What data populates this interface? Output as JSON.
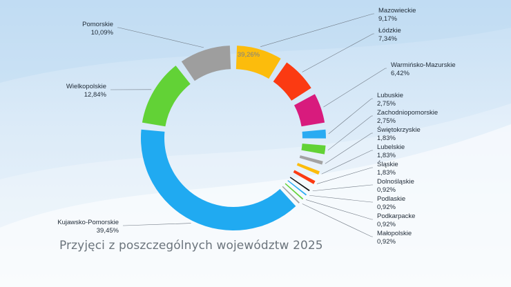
{
  "title": "Przyjęci z poszczególnych województw 2025",
  "chart_data": {
    "type": "pie",
    "title": "Przyjęci z poszczególnych województw 2025",
    "annotation": "39,26%",
    "slices": [
      {
        "name": "Mazowieckie",
        "value_label": "9,17%",
        "value": 9.17,
        "color": "#fcbc0c"
      },
      {
        "name": "Łódzkie",
        "value_label": "7,34%",
        "value": 7.34,
        "color": "#fb3a12"
      },
      {
        "name": "Warmińsko-Mazurskie",
        "value_label": "6,42%",
        "value": 6.42,
        "color": "#d81b7d"
      },
      {
        "name": "Lubuskie",
        "value_label": "2,75%",
        "value": 2.75,
        "color": "#2aabf2"
      },
      {
        "name": "Zachodniopomorskie",
        "value_label": "2,75%",
        "value": 2.75,
        "color": "#62d236"
      },
      {
        "name": "Świętokrzyskie",
        "value_label": "1,83%",
        "value": 1.83,
        "color": "#a3a3a3"
      },
      {
        "name": "Lubelskie",
        "value_label": "1,83%",
        "value": 1.83,
        "color": "#fcbc0c"
      },
      {
        "name": "Śląskie",
        "value_label": "1,83%",
        "value": 1.83,
        "color": "#fb3a12"
      },
      {
        "name": "Dolnośląskie",
        "value_label": "0,92%",
        "value": 0.92,
        "color": "#111111"
      },
      {
        "name": "Podlaskie",
        "value_label": "0,92%",
        "value": 0.92,
        "color": "#2aabf2"
      },
      {
        "name": "Podkarpacke",
        "value_label": "0,92%",
        "value": 0.92,
        "color": "#62d236"
      },
      {
        "name": "Małopolskie",
        "value_label": "0,92%",
        "value": 0.92,
        "color": "#a3a3a3"
      },
      {
        "name": "Kujawsko-Pomorskie",
        "value_label": "39,45%",
        "value": 39.45,
        "color": "#20aaf1"
      },
      {
        "name": "Wielkopolskie",
        "value_label": "12,84%",
        "value": 12.84,
        "color": "#62d236"
      },
      {
        "name": "Pomorskie",
        "value_label": "10,09%",
        "value": 10.09,
        "color": "#9e9e9e"
      }
    ]
  }
}
